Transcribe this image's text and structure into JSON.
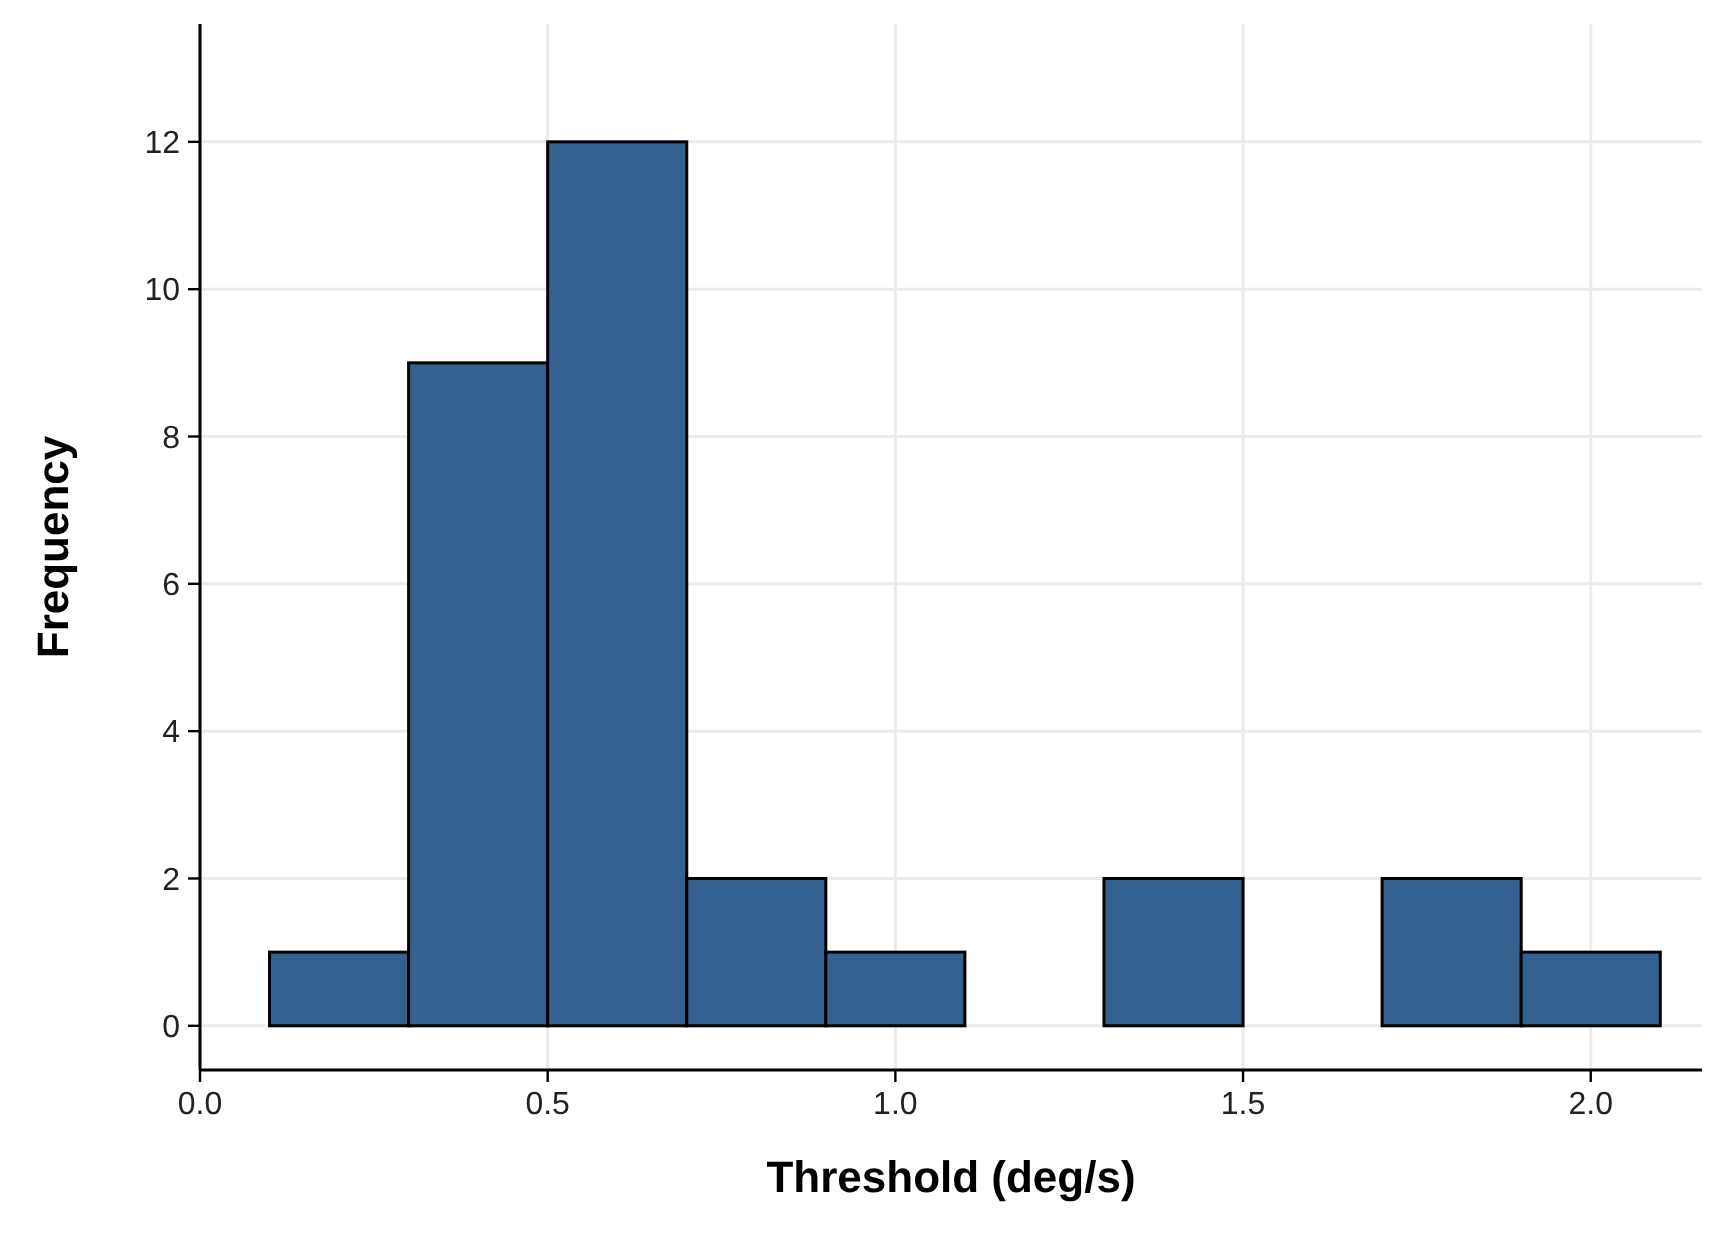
{
  "chart_data": {
    "type": "histogram",
    "xlabel": "Threshold (deg/s)",
    "ylabel": "Frequency",
    "bins": [
      0.1,
      0.3,
      0.5,
      0.7,
      0.9,
      1.1,
      1.3,
      1.5,
      1.7,
      1.9,
      2.1
    ],
    "values": [
      1,
      9,
      12,
      2,
      1,
      0,
      2,
      0,
      2,
      1
    ],
    "color": "#356190",
    "xlim": [
      0,
      2.16
    ],
    "ylim": [
      -0.6,
      13.6
    ],
    "xticks": [
      {
        "value": 0,
        "label": "0.0"
      },
      {
        "value": 0.5,
        "label": "0.5"
      },
      {
        "value": 1,
        "label": "1.0"
      },
      {
        "value": 1.5,
        "label": "1.5"
      },
      {
        "value": 2,
        "label": "2.0"
      }
    ],
    "yticks": [
      0,
      2,
      4,
      6,
      8,
      10,
      12
    ],
    "grid": true
  }
}
